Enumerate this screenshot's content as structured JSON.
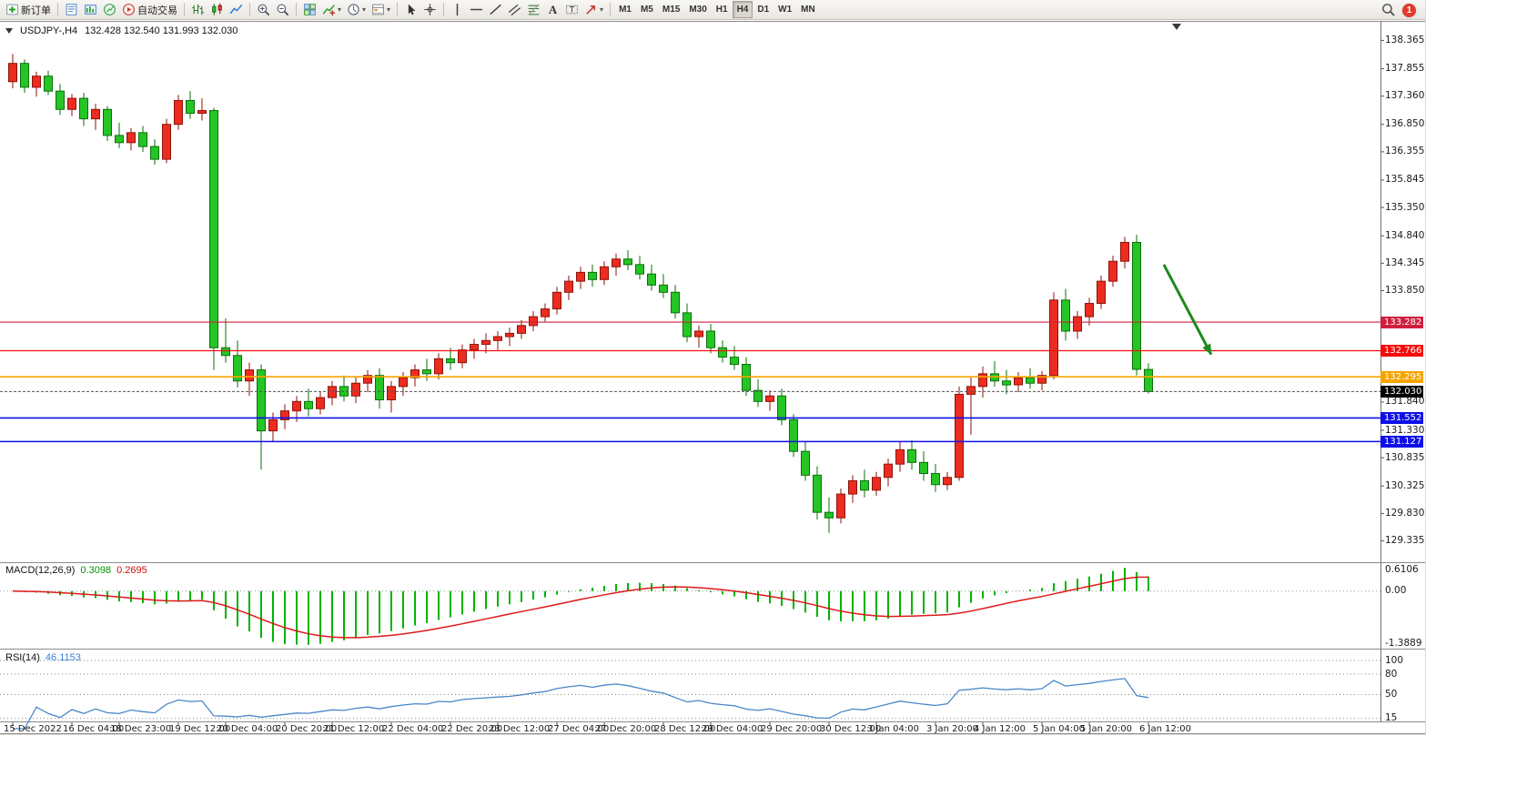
{
  "toolbar": {
    "notification_count": "1",
    "items": [
      {
        "name": "new-order-button",
        "icon": "new-order",
        "label": "新订单"
      },
      {
        "sep": true
      },
      {
        "name": "market-watch-button",
        "icon": "market-watch"
      },
      {
        "name": "data-window-button",
        "icon": "data-window"
      },
      {
        "name": "new-chart-button",
        "icon": "new-chart"
      },
      {
        "name": "autotrading-button",
        "icon": "autotrading",
        "label": "自动交易"
      },
      {
        "sep": true
      },
      {
        "name": "bar-chart-button",
        "icon": "bars"
      },
      {
        "name": "candlestick-chart-button",
        "icon": "candles"
      },
      {
        "name": "line-chart-button",
        "icon": "line-chart"
      },
      {
        "sep": true
      },
      {
        "name": "zoom-in-button",
        "icon": "zoom-in"
      },
      {
        "name": "zoom-out-button",
        "icon": "zoom-out"
      },
      {
        "sep": true
      },
      {
        "name": "tile-windows-button",
        "icon": "tile"
      },
      {
        "name": "indicators-button",
        "icon": "indicators",
        "dropdown": true
      },
      {
        "name": "periods-button",
        "icon": "periods",
        "dropdown": true
      },
      {
        "name": "templates-button",
        "icon": "templates",
        "dropdown": true
      },
      {
        "sep": true
      },
      {
        "name": "cursor-button",
        "icon": "cursor"
      },
      {
        "name": "crosshair-button",
        "icon": "crosshair"
      },
      {
        "sep": true
      },
      {
        "name": "v-line-button",
        "icon": "vline"
      },
      {
        "name": "h-line-button",
        "icon": "hline"
      },
      {
        "name": "trendline-button",
        "icon": "trendline"
      },
      {
        "name": "equidistant-channel-button",
        "icon": "channel"
      },
      {
        "name": "fibonacci-button",
        "icon": "fibo"
      },
      {
        "name": "text-button",
        "icon": "text"
      },
      {
        "name": "text-label-button",
        "icon": "label"
      },
      {
        "name": "arrows-button",
        "icon": "arrows",
        "dropdown": true
      },
      {
        "sep": true
      },
      {
        "name": "timeframe-m1-button",
        "tf": "M1"
      },
      {
        "name": "timeframe-m5-button",
        "tf": "M5"
      },
      {
        "name": "timeframe-m15-button",
        "tf": "M15"
      },
      {
        "name": "timeframe-m30-button",
        "tf": "M30"
      },
      {
        "name": "timeframe-h1-button",
        "tf": "H1"
      },
      {
        "name": "timeframe-h4-button",
        "tf": "H4",
        "active": true
      },
      {
        "name": "timeframe-d1-button",
        "tf": "D1"
      },
      {
        "name": "timeframe-w1-button",
        "tf": "W1"
      },
      {
        "name": "timeframe-mn-button",
        "tf": "MN"
      }
    ]
  },
  "chart": {
    "title": "USDJPY-,H4",
    "ohlc": "132.428 132.540 131.993 132.030",
    "colors": {
      "up": "#ec2c20",
      "up_border": "#8d1309",
      "down": "#25c525",
      "down_border": "#0a700a",
      "rsi_line": "#4a86c8",
      "macd_hist": "#00b300",
      "macd_signal": "#dd1a1a"
    },
    "axis_ticks": [
      138.365,
      137.855,
      137.36,
      136.85,
      136.355,
      135.845,
      135.35,
      134.84,
      134.345,
      133.85,
      131.84,
      131.33,
      130.835,
      130.325,
      129.83,
      129.335
    ],
    "levels": [
      {
        "name": "resistance-line-upper",
        "price": 133.282,
        "label": "133.282",
        "color": "#cf1f3e",
        "width": 1.2
      },
      {
        "name": "resistance-line-lower",
        "price": 132.766,
        "label": "132.766",
        "color": "#f50b0b",
        "width": 1.2
      },
      {
        "name": "pivot-line-orange",
        "price": 132.295,
        "label": "132.295",
        "color": "#f6a400",
        "width": 1.6
      },
      {
        "name": "support-line-upper",
        "price": 131.552,
        "label": "131.552",
        "color": "#0f0fe8",
        "width": 1.6
      },
      {
        "name": "support-line-lower",
        "price": 131.127,
        "label": "131.127",
        "color": "#0f0fe8",
        "width": 1.6
      }
    ],
    "bid": {
      "price": 132.03,
      "label": "132.030",
      "color": "#000000"
    },
    "arrow": {
      "from_i": 97.3,
      "from_price": 134.32,
      "to_i": 101.3,
      "to_price": 132.7,
      "color": "#1d8a1d"
    }
  },
  "macd_panel": {
    "label": "MACD(12,26,9)",
    "value_main": "0.3098",
    "value_signal": "0.2695",
    "axis": [
      "0.6106",
      "0.00",
      "-1.3889"
    ]
  },
  "rsi_panel": {
    "label": "RSI(14)",
    "value": "46.1153",
    "axis": [
      "100",
      "80",
      "50",
      "15"
    ]
  },
  "chart_data": {
    "type": "candlestick",
    "symbol": "USDJPY-",
    "timeframe": "H4",
    "title": "USDJPY-,H4 132.428 132.540 131.993 132.030",
    "price_axis_range": [
      128.95,
      138.7
    ],
    "candles": [
      [
        137.62,
        138.12,
        137.5,
        137.95
      ],
      [
        137.95,
        138.02,
        137.42,
        137.52
      ],
      [
        137.52,
        137.8,
        137.35,
        137.72
      ],
      [
        137.72,
        137.82,
        137.38,
        137.45
      ],
      [
        137.45,
        137.58,
        137.02,
        137.12
      ],
      [
        137.12,
        137.4,
        137.0,
        137.32
      ],
      [
        137.32,
        137.42,
        136.82,
        136.95
      ],
      [
        136.95,
        137.22,
        136.75,
        137.12
      ],
      [
        137.12,
        137.18,
        136.55,
        136.65
      ],
      [
        136.65,
        136.88,
        136.42,
        136.52
      ],
      [
        136.52,
        136.78,
        136.38,
        136.7
      ],
      [
        136.7,
        136.82,
        136.35,
        136.45
      ],
      [
        136.45,
        136.58,
        136.12,
        136.22
      ],
      [
        136.22,
        136.95,
        136.15,
        136.85
      ],
      [
        136.85,
        137.38,
        136.75,
        137.28
      ],
      [
        137.28,
        137.45,
        136.95,
        137.05
      ],
      [
        137.05,
        137.32,
        136.92,
        137.1
      ],
      [
        137.1,
        137.15,
        132.42,
        132.82
      ],
      [
        132.82,
        133.35,
        132.55,
        132.68
      ],
      [
        132.68,
        132.95,
        132.1,
        132.22
      ],
      [
        132.22,
        132.55,
        131.95,
        132.42
      ],
      [
        132.42,
        132.52,
        130.62,
        131.32
      ],
      [
        131.32,
        131.65,
        131.12,
        131.52
      ],
      [
        131.52,
        131.8,
        131.35,
        131.68
      ],
      [
        131.68,
        131.95,
        131.48,
        131.85
      ],
      [
        131.85,
        132.08,
        131.58,
        131.72
      ],
      [
        131.72,
        132.02,
        131.62,
        131.92
      ],
      [
        131.92,
        132.22,
        131.78,
        132.12
      ],
      [
        132.12,
        132.32,
        131.85,
        131.95
      ],
      [
        131.95,
        132.28,
        131.82,
        132.18
      ],
      [
        132.18,
        132.42,
        132.02,
        132.32
      ],
      [
        132.32,
        132.45,
        131.72,
        131.88
      ],
      [
        131.88,
        132.22,
        131.65,
        132.12
      ],
      [
        132.12,
        132.38,
        131.95,
        132.28
      ],
      [
        132.28,
        132.52,
        132.12,
        132.42
      ],
      [
        132.42,
        132.62,
        132.22,
        132.35
      ],
      [
        132.35,
        132.72,
        132.25,
        132.62
      ],
      [
        132.62,
        132.82,
        132.42,
        132.55
      ],
      [
        132.55,
        132.88,
        132.45,
        132.78
      ],
      [
        132.78,
        132.98,
        132.62,
        132.88
      ],
      [
        132.88,
        133.08,
        132.72,
        132.95
      ],
      [
        132.95,
        133.12,
        132.78,
        133.02
      ],
      [
        133.02,
        133.18,
        132.85,
        133.08
      ],
      [
        133.08,
        133.32,
        132.98,
        133.22
      ],
      [
        133.22,
        133.48,
        133.12,
        133.38
      ],
      [
        133.38,
        133.62,
        133.28,
        133.52
      ],
      [
        133.52,
        133.92,
        133.42,
        133.82
      ],
      [
        133.82,
        134.12,
        133.68,
        134.02
      ],
      [
        134.02,
        134.28,
        133.88,
        134.18
      ],
      [
        134.18,
        134.32,
        133.92,
        134.05
      ],
      [
        134.05,
        134.38,
        133.95,
        134.28
      ],
      [
        134.28,
        134.52,
        134.12,
        134.42
      ],
      [
        134.42,
        134.58,
        134.22,
        134.32
      ],
      [
        134.32,
        134.48,
        134.05,
        134.15
      ],
      [
        134.15,
        134.32,
        133.85,
        133.95
      ],
      [
        133.95,
        134.15,
        133.72,
        133.82
      ],
      [
        133.82,
        133.95,
        133.35,
        133.45
      ],
      [
        133.45,
        133.62,
        132.92,
        133.02
      ],
      [
        133.02,
        133.22,
        132.82,
        133.12
      ],
      [
        133.12,
        133.25,
        132.72,
        132.82
      ],
      [
        132.82,
        132.95,
        132.55,
        132.65
      ],
      [
        132.65,
        132.85,
        132.42,
        132.52
      ],
      [
        132.52,
        132.65,
        131.95,
        132.05
      ],
      [
        132.05,
        132.25,
        131.75,
        131.85
      ],
      [
        131.85,
        132.05,
        131.68,
        131.95
      ],
      [
        131.95,
        132.08,
        131.42,
        131.52
      ],
      [
        131.52,
        131.62,
        130.85,
        130.95
      ],
      [
        130.95,
        131.12,
        130.42,
        130.52
      ],
      [
        130.52,
        130.68,
        129.72,
        129.85
      ],
      [
        129.85,
        130.12,
        129.48,
        129.75
      ],
      [
        129.75,
        130.28,
        129.65,
        130.18
      ],
      [
        130.18,
        130.52,
        130.02,
        130.42
      ],
      [
        130.42,
        130.62,
        130.12,
        130.25
      ],
      [
        130.25,
        130.58,
        130.15,
        130.48
      ],
      [
        130.48,
        130.82,
        130.32,
        130.72
      ],
      [
        130.72,
        131.12,
        130.58,
        130.98
      ],
      [
        130.98,
        131.15,
        130.62,
        130.75
      ],
      [
        130.75,
        130.95,
        130.42,
        130.55
      ],
      [
        130.55,
        130.72,
        130.22,
        130.35
      ],
      [
        130.35,
        130.58,
        130.25,
        130.48
      ],
      [
        130.48,
        132.12,
        130.42,
        131.98
      ],
      [
        131.98,
        132.28,
        131.25,
        132.12
      ],
      [
        132.12,
        132.48,
        131.92,
        132.35
      ],
      [
        132.35,
        132.58,
        132.12,
        132.22
      ],
      [
        132.22,
        132.42,
        131.98,
        132.15
      ],
      [
        132.15,
        132.38,
        132.02,
        132.28
      ],
      [
        132.28,
        132.45,
        132.08,
        132.18
      ],
      [
        132.18,
        132.4,
        132.05,
        132.32
      ],
      [
        132.32,
        133.82,
        132.25,
        133.68
      ],
      [
        133.68,
        133.88,
        132.95,
        133.12
      ],
      [
        133.12,
        133.48,
        132.98,
        133.38
      ],
      [
        133.38,
        133.72,
        133.22,
        133.62
      ],
      [
        133.62,
        134.12,
        133.52,
        134.02
      ],
      [
        134.02,
        134.48,
        133.92,
        134.38
      ],
      [
        134.38,
        134.82,
        134.25,
        134.72
      ],
      [
        134.72,
        134.86,
        132.32,
        132.43
      ],
      [
        132.428,
        132.54,
        131.993,
        132.03
      ]
    ],
    "time_labels": [
      {
        "t": "15 Dec 2022",
        "i": 0
      },
      {
        "t": "16 Dec 04:00",
        "i": 5
      },
      {
        "t": "18 Dec 23:00",
        "i": 9
      },
      {
        "t": "19 Dec 12:00",
        "i": 14
      },
      {
        "t": "20 Dec 04:00",
        "i": 18
      },
      {
        "t": "20 Dec 20:00",
        "i": 23
      },
      {
        "t": "21 Dec 12:00",
        "i": 27
      },
      {
        "t": "22 Dec 04:00",
        "i": 32
      },
      {
        "t": "22 Dec 20:00",
        "i": 37
      },
      {
        "t": "23 Dec 12:00",
        "i": 41
      },
      {
        "t": "27 Dec 04:00",
        "i": 46
      },
      {
        "t": "27 Dec 20:00",
        "i": 50
      },
      {
        "t": "28 Dec 12:00",
        "i": 55
      },
      {
        "t": "29 Dec 04:00",
        "i": 59
      },
      {
        "t": "29 Dec 20:00",
        "i": 64
      },
      {
        "t": "30 Dec 12:00",
        "i": 69
      },
      {
        "t": "3 Jan 04:00",
        "i": 73
      },
      {
        "t": "3 Jan 20:00",
        "i": 78
      },
      {
        "t": "4 Jan 12:00",
        "i": 82
      },
      {
        "t": "5 Jan 04:00",
        "i": 87
      },
      {
        "t": "5 Jan 20:00",
        "i": 91
      },
      {
        "t": "6 Jan 12:00",
        "i": 96
      }
    ],
    "indicators": [
      {
        "type": "MACD",
        "params": [
          12,
          26,
          9
        ],
        "values": [
          0.3098,
          0.2695
        ],
        "scale": {
          "max": "0.6106",
          "zero": "0.00",
          "min": "-1.3889"
        }
      },
      {
        "type": "RSI",
        "params": [
          14
        ],
        "value": 46.1153,
        "levels": [
          100,
          80,
          50,
          15
        ]
      }
    ]
  }
}
